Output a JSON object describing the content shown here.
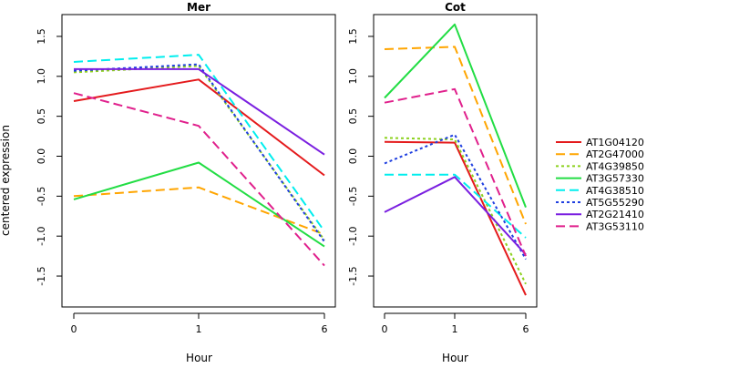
{
  "shared": {
    "ylabel": "centered expression",
    "xlabel": "Hour",
    "x_ticks": [
      "0",
      "1",
      "6"
    ],
    "y_ticks": [
      "-1.5",
      "-1.0",
      "-0.5",
      "0.0",
      "0.5",
      "1.0",
      "1.5"
    ]
  },
  "legend": {
    "placement": "right",
    "entries": [
      {
        "name": "AT1G04120",
        "color": "#e41a1c",
        "dash": "solid"
      },
      {
        "name": "AT2G47000",
        "color": "#ffa500",
        "dash": "dashed"
      },
      {
        "name": "AT4G39850",
        "color": "#8cd11e",
        "dash": "dotted"
      },
      {
        "name": "AT3G57330",
        "color": "#22dd44",
        "dash": "solid"
      },
      {
        "name": "AT4G38510",
        "color": "#00eeee",
        "dash": "dashed"
      },
      {
        "name": "AT5G55290",
        "color": "#1f3fe0",
        "dash": "dotted"
      },
      {
        "name": "AT2G21410",
        "color": "#7a1fe0",
        "dash": "solid"
      },
      {
        "name": "AT3G53110",
        "color": "#e0208c",
        "dash": "dashed"
      }
    ]
  },
  "chart_data": [
    {
      "type": "line",
      "title": "Mer",
      "xlabel": "Hour",
      "ylabel": "centered expression",
      "categories": [
        "0",
        "1",
        "6"
      ],
      "ylim": [
        -1.9,
        1.9
      ],
      "grid": false,
      "series": [
        {
          "name": "AT1G04120",
          "values": [
            0.69,
            0.96,
            -0.24
          ]
        },
        {
          "name": "AT2G47000",
          "values": [
            -0.5,
            -0.39,
            -0.98
          ]
        },
        {
          "name": "AT4G39850",
          "values": [
            1.05,
            1.13,
            -1.05
          ]
        },
        {
          "name": "AT3G57330",
          "values": [
            -0.54,
            -0.08,
            -1.13
          ]
        },
        {
          "name": "AT4G38510",
          "values": [
            1.18,
            1.27,
            -0.94
          ]
        },
        {
          "name": "AT5G55290",
          "values": [
            1.07,
            1.15,
            -1.07
          ]
        },
        {
          "name": "AT2G21410",
          "values": [
            1.09,
            1.09,
            0.02
          ]
        },
        {
          "name": "AT3G53110",
          "values": [
            0.79,
            0.38,
            -1.37
          ]
        }
      ]
    },
    {
      "type": "line",
      "title": "Cot",
      "xlabel": "Hour",
      "ylabel": "",
      "categories": [
        "0",
        "1",
        "6"
      ],
      "ylim": [
        -1.9,
        1.9
      ],
      "grid": false,
      "series": [
        {
          "name": "AT1G04120",
          "values": [
            0.18,
            0.17,
            -1.74
          ]
        },
        {
          "name": "AT2G47000",
          "values": [
            1.34,
            1.37,
            -0.85
          ]
        },
        {
          "name": "AT4G39850",
          "values": [
            0.23,
            0.21,
            -1.6
          ]
        },
        {
          "name": "AT3G57330",
          "values": [
            0.73,
            1.65,
            -0.64
          ]
        },
        {
          "name": "AT4G38510",
          "values": [
            -0.23,
            -0.23,
            -1.02
          ]
        },
        {
          "name": "AT5G55290",
          "values": [
            -0.09,
            0.27,
            -1.29
          ]
        },
        {
          "name": "AT2G21410",
          "values": [
            -0.7,
            -0.26,
            -1.23
          ]
        },
        {
          "name": "AT3G53110",
          "values": [
            0.67,
            0.84,
            -1.25
          ]
        }
      ]
    }
  ]
}
